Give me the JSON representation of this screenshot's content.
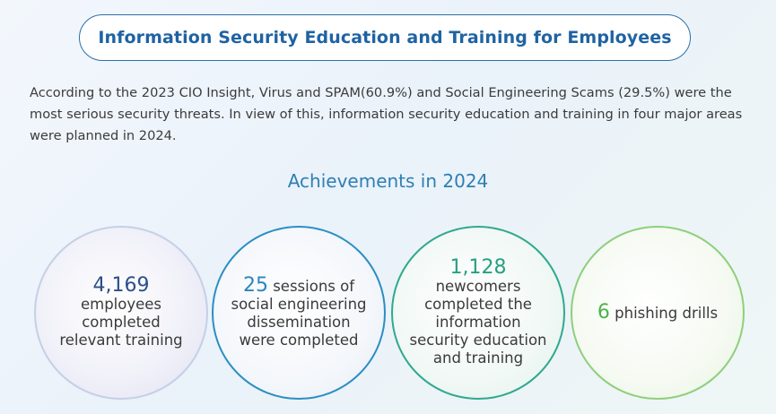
{
  "header": {
    "title": "Information Security Education and Training for Employees"
  },
  "intro": {
    "text": "According to the 2023 CIO Insight, Virus and SPAM(60.9%) and Social Engineering Scams (29.5%) were the most serious security threats. In view of this, information security education and training in four major areas were planned in 2024."
  },
  "achievements": {
    "heading": "Achievements in 2024",
    "items": [
      {
        "number": "4,169",
        "text_a": " employees",
        "text_b": "completed",
        "text_c": "relevant training"
      },
      {
        "number": "25",
        "text_a": " sessions of",
        "text_b": "social engineering",
        "text_c": "dissemination",
        "text_d": "were completed"
      },
      {
        "number": "1,128",
        "text_a": " newcomers",
        "text_b": "completed the",
        "text_c": "information",
        "text_d": "security education",
        "text_e": "and training"
      },
      {
        "number": "6",
        "text_a": " phishing drills"
      }
    ]
  },
  "colors": {
    "title": "#1f63a3",
    "heading": "#2e7fb3",
    "circle1": "#2b4f88",
    "circle2": "#2a86bd",
    "circle3": "#26a07f",
    "circle4": "#4db24a"
  }
}
